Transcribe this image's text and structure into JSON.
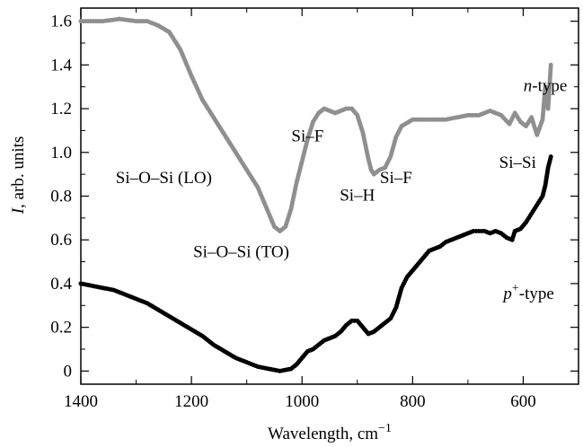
{
  "chart_data": {
    "type": "scatter",
    "xlabel": "Wavelength, cm",
    "xlabel_sup": "−1",
    "ylabel_italic": "I",
    "ylabel_rest": ", arb. units",
    "xlim": [
      1400,
      500
    ],
    "ylim": [
      -0.06,
      1.66
    ],
    "x_reversed": true,
    "x_ticks": [
      1400,
      1200,
      1000,
      800,
      600
    ],
    "x_tick_labels": [
      "1400",
      "1200",
      "1000",
      "800",
      "600"
    ],
    "y_ticks": [
      0,
      0.2,
      0.4,
      0.6,
      0.8,
      1.0,
      1.2,
      1.4,
      1.6
    ],
    "y_tick_labels": [
      "0",
      "0.2",
      "0.4",
      "0.6",
      "0.8",
      "1.0",
      "1.2",
      "1.4",
      "1.6"
    ],
    "grid": false,
    "series": [
      {
        "name": "n-type",
        "color": "#8f8f8f",
        "points": [
          [
            1400,
            1.6
          ],
          [
            1360,
            1.6
          ],
          [
            1330,
            1.61
          ],
          [
            1300,
            1.6
          ],
          [
            1280,
            1.6
          ],
          [
            1260,
            1.58
          ],
          [
            1240,
            1.55
          ],
          [
            1220,
            1.47
          ],
          [
            1200,
            1.35
          ],
          [
            1180,
            1.24
          ],
          [
            1160,
            1.16
          ],
          [
            1140,
            1.08
          ],
          [
            1120,
            1.0
          ],
          [
            1100,
            0.92
          ],
          [
            1080,
            0.84
          ],
          [
            1070,
            0.78
          ],
          [
            1060,
            0.72
          ],
          [
            1050,
            0.66
          ],
          [
            1040,
            0.64
          ],
          [
            1030,
            0.66
          ],
          [
            1020,
            0.74
          ],
          [
            1010,
            0.86
          ],
          [
            1000,
            0.96
          ],
          [
            990,
            1.06
          ],
          [
            980,
            1.14
          ],
          [
            970,
            1.18
          ],
          [
            960,
            1.2
          ],
          [
            950,
            1.19
          ],
          [
            940,
            1.18
          ],
          [
            930,
            1.19
          ],
          [
            920,
            1.2
          ],
          [
            910,
            1.2
          ],
          [
            900,
            1.17
          ],
          [
            890,
            1.09
          ],
          [
            880,
            0.97
          ],
          [
            875,
            0.92
          ],
          [
            870,
            0.9
          ],
          [
            860,
            0.92
          ],
          [
            850,
            0.93
          ],
          [
            840,
            0.98
          ],
          [
            830,
            1.07
          ],
          [
            820,
            1.12
          ],
          [
            800,
            1.15
          ],
          [
            780,
            1.15
          ],
          [
            760,
            1.15
          ],
          [
            740,
            1.15
          ],
          [
            720,
            1.16
          ],
          [
            700,
            1.17
          ],
          [
            680,
            1.17
          ],
          [
            660,
            1.19
          ],
          [
            640,
            1.17
          ],
          [
            625,
            1.13
          ],
          [
            615,
            1.18
          ],
          [
            605,
            1.14
          ],
          [
            595,
            1.12
          ],
          [
            585,
            1.16
          ],
          [
            575,
            1.08
          ],
          [
            565,
            1.15
          ],
          [
            560,
            1.3
          ],
          [
            555,
            1.2
          ],
          [
            550,
            1.4
          ]
        ]
      },
      {
        "name": "p+-type",
        "color": "#000000",
        "points": [
          [
            1400,
            0.4
          ],
          [
            1380,
            0.39
          ],
          [
            1360,
            0.38
          ],
          [
            1340,
            0.37
          ],
          [
            1320,
            0.35
          ],
          [
            1300,
            0.33
          ],
          [
            1280,
            0.31
          ],
          [
            1260,
            0.28
          ],
          [
            1240,
            0.25
          ],
          [
            1220,
            0.22
          ],
          [
            1200,
            0.19
          ],
          [
            1180,
            0.16
          ],
          [
            1160,
            0.12
          ],
          [
            1140,
            0.09
          ],
          [
            1120,
            0.06
          ],
          [
            1100,
            0.04
          ],
          [
            1080,
            0.02
          ],
          [
            1060,
            0.01
          ],
          [
            1040,
            0.0
          ],
          [
            1020,
            0.01
          ],
          [
            1010,
            0.03
          ],
          [
            1000,
            0.06
          ],
          [
            990,
            0.09
          ],
          [
            980,
            0.1
          ],
          [
            970,
            0.12
          ],
          [
            960,
            0.14
          ],
          [
            950,
            0.15
          ],
          [
            940,
            0.16
          ],
          [
            930,
            0.18
          ],
          [
            920,
            0.21
          ],
          [
            910,
            0.23
          ],
          [
            900,
            0.23
          ],
          [
            890,
            0.2
          ],
          [
            880,
            0.17
          ],
          [
            870,
            0.18
          ],
          [
            860,
            0.2
          ],
          [
            850,
            0.22
          ],
          [
            840,
            0.24
          ],
          [
            830,
            0.29
          ],
          [
            820,
            0.38
          ],
          [
            810,
            0.43
          ],
          [
            800,
            0.46
          ],
          [
            790,
            0.49
          ],
          [
            780,
            0.52
          ],
          [
            770,
            0.55
          ],
          [
            760,
            0.56
          ],
          [
            750,
            0.57
          ],
          [
            740,
            0.59
          ],
          [
            730,
            0.6
          ],
          [
            720,
            0.61
          ],
          [
            710,
            0.62
          ],
          [
            700,
            0.63
          ],
          [
            690,
            0.64
          ],
          [
            680,
            0.64
          ],
          [
            670,
            0.64
          ],
          [
            660,
            0.63
          ],
          [
            650,
            0.64
          ],
          [
            640,
            0.63
          ],
          [
            630,
            0.61
          ],
          [
            620,
            0.6
          ],
          [
            615,
            0.64
          ],
          [
            605,
            0.65
          ],
          [
            595,
            0.68
          ],
          [
            585,
            0.72
          ],
          [
            575,
            0.76
          ],
          [
            565,
            0.8
          ],
          [
            560,
            0.85
          ],
          [
            555,
            0.93
          ],
          [
            550,
            0.98
          ]
        ]
      }
    ],
    "annotations": [
      {
        "text": "n-type",
        "italic_prefix": "n",
        "x": 560,
        "y": 1.28
      },
      {
        "text": "p+-type",
        "x": 590,
        "y": 0.33
      },
      {
        "text": "Si–O–Si (LO)",
        "x": 1250,
        "y": 0.86
      },
      {
        "text": "Si–O–Si (TO)",
        "x": 1110,
        "y": 0.52
      },
      {
        "text": "Si–F",
        "x": 990,
        "y": 1.05
      },
      {
        "text": "Si–H",
        "x": 900,
        "y": 0.78
      },
      {
        "text": "Si–F",
        "x": 830,
        "y": 0.86
      },
      {
        "text": "Si–Si",
        "x": 610,
        "y": 0.93
      }
    ]
  }
}
